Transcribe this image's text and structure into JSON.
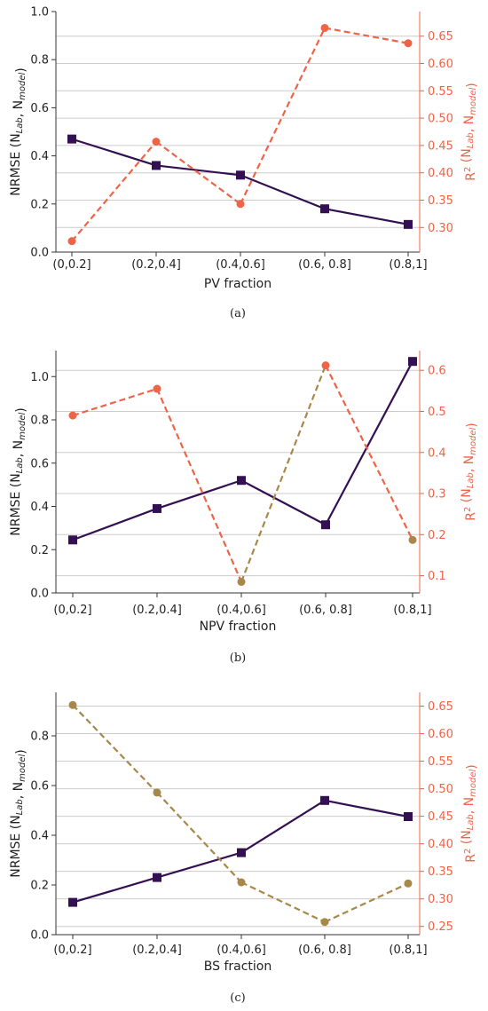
{
  "colors": {
    "nrmse": "#331052",
    "r2": "#ee6448",
    "r2_low": "#a8874a",
    "grid": "#cccccc",
    "axis": "#333333"
  },
  "chart_data": [
    {
      "type": "line",
      "caption": "(a)",
      "xlabel": "PV fraction",
      "ylabel_left": "NRMSE (N_Lab, N_model)",
      "ylabel_right": "R² (N_Lab, N_model)",
      "categories": [
        "(0,0.2]",
        "(0.2,0.4]",
        "(0.4,0.6]",
        "(0.6, 0.8]",
        "(0.8,1]"
      ],
      "left_ylim": [
        0,
        1.0
      ],
      "left_ticks": [
        0.0,
        0.2,
        0.4,
        0.6,
        0.8,
        1.0
      ],
      "right_ylim": [
        0.255,
        0.695
      ],
      "right_ticks": [
        0.3,
        0.35,
        0.4,
        0.45,
        0.5,
        0.55,
        0.6,
        0.65
      ],
      "grid": true,
      "series": [
        {
          "axis": "left",
          "marker": "square",
          "style": "solid",
          "values": [
            0.47,
            0.36,
            0.32,
            0.18,
            0.115
          ]
        },
        {
          "axis": "right",
          "marker": "circle",
          "style": "dashed",
          "values": [
            0.275,
            0.457,
            0.343,
            0.665,
            0.637
          ]
        }
      ]
    },
    {
      "type": "line",
      "caption": "(b)",
      "xlabel": "NPV fraction",
      "ylabel_left": "NRMSE (N_Lab, N_model)",
      "ylabel_right": "R² (N_Lab, N_model)",
      "categories": [
        "(0,0.2]",
        "(0.2,0.4]",
        "(0.4,0.6]",
        "(0.6, 0.8]",
        "(0.8,1]"
      ],
      "left_ylim": [
        0,
        1.12
      ],
      "left_ticks": [
        0.0,
        0.2,
        0.4,
        0.6,
        0.8,
        1.0
      ],
      "right_ylim": [
        0.058,
        0.648
      ],
      "right_ticks": [
        0.1,
        0.2,
        0.3,
        0.4,
        0.5,
        0.6
      ],
      "grid": true,
      "series": [
        {
          "axis": "left",
          "marker": "square",
          "style": "solid",
          "values": [
            0.245,
            0.39,
            0.52,
            0.315,
            1.07
          ]
        },
        {
          "axis": "right",
          "marker": "circle",
          "style": "dashed",
          "values": [
            0.49,
            0.555,
            0.085,
            0.612,
            0.187
          ]
        }
      ]
    },
    {
      "type": "line",
      "caption": "(c)",
      "xlabel": "BS fraction",
      "ylabel_left": "NRMSE (N_Lab, N_model)",
      "ylabel_right": "R² (N_Lab, N_model)",
      "categories": [
        "(0,0.2]",
        "(0.2,0.4]",
        "(0.4,0.6]",
        "(0.6, 0.8]",
        "(0.8,1]"
      ],
      "left_ylim": [
        0,
        0.975
      ],
      "left_ticks": [
        0.0,
        0.2,
        0.4,
        0.6,
        0.8
      ],
      "right_ylim": [
        0.235,
        0.675
      ],
      "right_ticks": [
        0.25,
        0.3,
        0.35,
        0.4,
        0.45,
        0.5,
        0.55,
        0.6,
        0.65
      ],
      "grid": true,
      "series": [
        {
          "axis": "left",
          "marker": "square",
          "style": "solid",
          "values": [
            0.13,
            0.23,
            0.33,
            0.54,
            0.475
          ]
        },
        {
          "axis": "right",
          "marker": "circle",
          "style": "dashed",
          "values": [
            0.652,
            0.493,
            0.33,
            0.258,
            0.328
          ]
        }
      ]
    }
  ]
}
